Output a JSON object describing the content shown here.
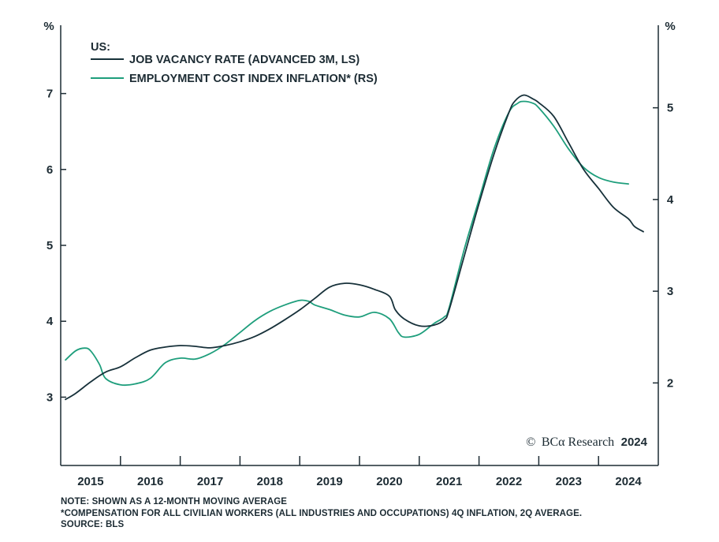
{
  "chart_data": {
    "type": "line",
    "legend_header": "US:",
    "legend_position": "top-left",
    "left_axis": {
      "unit": "%",
      "ylim": [
        2.1,
        7.9
      ],
      "ticks": [
        3,
        4,
        5,
        6,
        7
      ]
    },
    "right_axis": {
      "unit": "%",
      "ylim": [
        1.1,
        5.9
      ],
      "ticks": [
        2,
        3,
        4,
        5
      ]
    },
    "x_axis": {
      "xlim": [
        2014.5,
        2024.5
      ],
      "year_labels": [
        "2015",
        "2016",
        "2017",
        "2018",
        "2019",
        "2020",
        "2021",
        "2022",
        "2023",
        "2024"
      ]
    },
    "grid": false,
    "series": [
      {
        "name": "JOB VACANCY RATE (ADVANCED 3M, LS)",
        "axis": "left",
        "color": "#17313a",
        "x": [
          2014.58,
          2014.75,
          2015.0,
          2015.25,
          2015.5,
          2015.75,
          2016.0,
          2016.25,
          2016.5,
          2016.75,
          2017.0,
          2017.25,
          2017.5,
          2017.75,
          2018.0,
          2018.25,
          2018.5,
          2018.75,
          2019.0,
          2019.25,
          2019.5,
          2019.75,
          2020.0,
          2020.1,
          2020.25,
          2020.5,
          2020.75,
          2020.92,
          2021.0,
          2021.25,
          2021.5,
          2021.75,
          2022.0,
          2022.1,
          2022.25,
          2022.4,
          2022.5,
          2022.75,
          2023.0,
          2023.25,
          2023.5,
          2023.75,
          2024.0,
          2024.1,
          2024.25
        ],
        "y": [
          2.97,
          3.05,
          3.2,
          3.33,
          3.4,
          3.52,
          3.62,
          3.66,
          3.68,
          3.67,
          3.65,
          3.68,
          3.73,
          3.8,
          3.9,
          4.02,
          4.15,
          4.3,
          4.45,
          4.5,
          4.48,
          4.42,
          4.33,
          4.15,
          4.03,
          3.94,
          3.95,
          4.02,
          4.15,
          4.85,
          5.55,
          6.2,
          6.75,
          6.9,
          6.98,
          6.93,
          6.88,
          6.7,
          6.35,
          6.0,
          5.75,
          5.5,
          5.35,
          5.25,
          5.18
        ]
      },
      {
        "name": "EMPLOYMENT COST INDEX INFLATION* (RS)",
        "axis": "right",
        "color": "#1e9e7c",
        "x": [
          2014.58,
          2014.75,
          2014.9,
          2015.0,
          2015.15,
          2015.25,
          2015.5,
          2015.75,
          2016.0,
          2016.25,
          2016.5,
          2016.75,
          2017.0,
          2017.25,
          2017.5,
          2017.75,
          2018.0,
          2018.25,
          2018.5,
          2018.65,
          2018.75,
          2019.0,
          2019.25,
          2019.5,
          2019.75,
          2020.0,
          2020.15,
          2020.25,
          2020.5,
          2020.75,
          2020.92,
          2021.0,
          2021.25,
          2021.5,
          2021.75,
          2022.0,
          2022.15,
          2022.25,
          2022.4,
          2022.5,
          2022.75,
          2023.0,
          2023.25,
          2023.5,
          2023.75,
          2024.0
        ],
        "y": [
          2.25,
          2.35,
          2.38,
          2.35,
          2.2,
          2.05,
          1.98,
          1.99,
          2.05,
          2.22,
          2.27,
          2.26,
          2.32,
          2.42,
          2.55,
          2.68,
          2.78,
          2.85,
          2.9,
          2.89,
          2.85,
          2.8,
          2.74,
          2.72,
          2.77,
          2.7,
          2.55,
          2.5,
          2.53,
          2.65,
          2.72,
          2.82,
          3.45,
          4.0,
          4.55,
          4.95,
          5.05,
          5.07,
          5.05,
          5.0,
          4.8,
          4.55,
          4.35,
          4.24,
          4.19,
          4.17
        ]
      }
    ]
  },
  "branding": {
    "copyright_symbol": "©",
    "brand": "BCα Research",
    "year": "2024"
  },
  "notes": [
    "NOTE: SHOWN AS A 12-MONTH MOVING AVERAGE",
    "*COMPENSATION FOR ALL CIVILIAN WORKERS (ALL INDUSTRIES AND OCCUPATIONS) 4Q INFLATION, 2Q AVERAGE.",
    "SOURCE: BLS"
  ]
}
